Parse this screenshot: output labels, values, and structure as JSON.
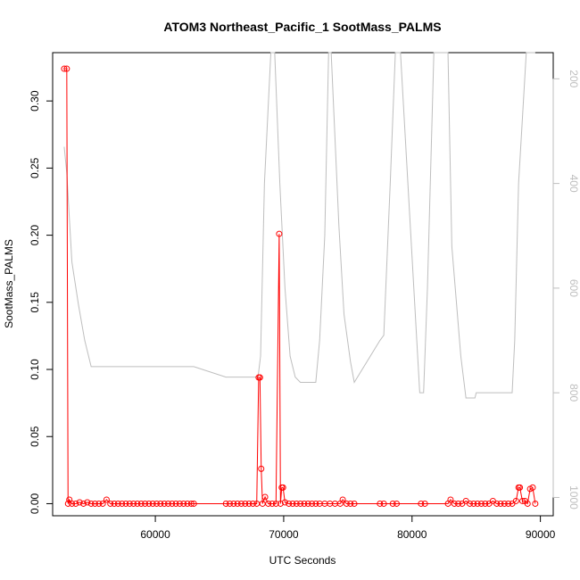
{
  "chart_data": {
    "type": "line",
    "title": "ATOM3 Northeast_Pacific_1 SootMass_PALMS",
    "xlabel": "UTC Seconds",
    "ylabel": "SootMass_PALMS",
    "xlim": [
      52000,
      91000
    ],
    "ylim": [
      -0.009,
      0.336
    ],
    "xticks": [
      "60000",
      "70000",
      "80000",
      "90000"
    ],
    "yticks": [
      "0.00",
      "0.05",
      "0.10",
      "0.15",
      "0.20",
      "0.25",
      "0.30"
    ],
    "y2lim": [
      1035,
      150
    ],
    "y2ticks": [
      "200",
      "400",
      "600",
      "800",
      "1000"
    ],
    "colors": {
      "series": "#ff0000",
      "secondary": "#bebebe"
    },
    "series": [
      {
        "color": "#ff0000",
        "markers": "open-circle",
        "x": [
          52900,
          53100,
          53200,
          53300,
          53500,
          53800,
          54100,
          54400,
          54700,
          55000,
          55300,
          55600,
          55900,
          56200,
          56500,
          56800,
          57100,
          57400,
          57700,
          58000,
          58300,
          58600,
          58900,
          59200,
          59500,
          59800,
          60100,
          60400,
          60700,
          61000,
          61300,
          61600,
          61900,
          62200,
          62500,
          62800,
          63000,
          65500,
          65800,
          66100,
          66400,
          66700,
          67000,
          67300,
          67600,
          67900,
          68050,
          68150,
          68250,
          68350,
          68550,
          68800,
          69100,
          69400,
          69650,
          69750,
          69850,
          69950,
          70100,
          70400,
          70700,
          71000,
          71300,
          71600,
          71900,
          72200,
          72500,
          72800,
          73200,
          73600,
          74000,
          74400,
          74600,
          74900,
          75200,
          75500,
          77500,
          77800,
          78500,
          78800,
          80700,
          81000,
          82800,
          83000,
          83300,
          83600,
          83900,
          84200,
          84500,
          84800,
          85100,
          85400,
          85700,
          86000,
          86300,
          86600,
          86900,
          87200,
          87500,
          87800,
          88100,
          88300,
          88400,
          88600,
          88800,
          89000,
          89200,
          89400,
          89600
        ],
        "values": [
          0.324,
          0.324,
          0.0,
          0.003,
          0.0,
          0.0,
          0.001,
          0.0,
          0.001,
          0.0,
          0.0,
          0.0,
          0.0,
          0.003,
          0.0,
          0.0,
          0.0,
          0.0,
          0.0,
          0.0,
          0.0,
          0.0,
          0.0,
          0.0,
          0.0,
          0.0,
          0.0,
          0.0,
          0.0,
          0.0,
          0.0,
          0.0,
          0.0,
          0.0,
          0.0,
          0.0,
          0.0,
          0.0,
          0.0,
          0.0,
          0.0,
          0.0,
          0.0,
          0.0,
          0.0,
          0.0,
          0.094,
          0.094,
          0.026,
          0.0,
          0.005,
          0.0,
          0.0,
          0.0,
          0.201,
          0.0,
          0.012,
          0.012,
          0.001,
          0.0,
          0.0,
          0.0,
          0.0,
          0.0,
          0.0,
          0.0,
          0.0,
          0.0,
          0.0,
          0.0,
          0.0,
          0.0,
          0.003,
          0.0,
          0.0,
          0.0,
          0.0,
          0.0,
          0.0,
          0.0,
          0.0,
          0.0,
          0.0,
          0.003,
          0.0,
          0.0,
          0.0,
          0.002,
          0.0,
          0.0,
          0.0,
          0.0,
          0.0,
          0.0,
          0.002,
          0.0,
          0.0,
          0.0,
          0.0,
          0.0,
          0.002,
          0.012,
          0.012,
          0.002,
          0.002,
          0.0,
          0.011,
          0.012,
          0.0
        ]
      },
      {
        "color": "#bebebe",
        "axis": "right",
        "markers": "none",
        "x": [
          52900,
          53100,
          53500,
          54000,
          54500,
          55000,
          63000,
          65500,
          68000,
          68200,
          68500,
          69000,
          69300,
          69700,
          70100,
          70500,
          70900,
          71300,
          72500,
          72800,
          73200,
          73500,
          73700,
          74300,
          74700,
          75200,
          75500,
          77500,
          77800,
          78300,
          78700,
          79100,
          80600,
          80900,
          81200,
          81700,
          82300,
          82800,
          83100,
          83800,
          84200,
          84400,
          84900,
          85000,
          87800,
          88000,
          88300,
          88900,
          89300,
          89600
        ],
        "values": [
          330,
          380,
          550,
          630,
          700,
          750,
          750,
          770,
          770,
          730,
          400,
          150,
          150,
          400,
          600,
          730,
          770,
          780,
          780,
          700,
          500,
          150,
          150,
          480,
          650,
          740,
          780,
          700,
          690,
          400,
          150,
          150,
          800,
          800,
          600,
          150,
          150,
          150,
          520,
          730,
          810,
          810,
          810,
          800,
          800,
          700,
          400,
          150,
          150,
          150
        ]
      }
    ]
  }
}
